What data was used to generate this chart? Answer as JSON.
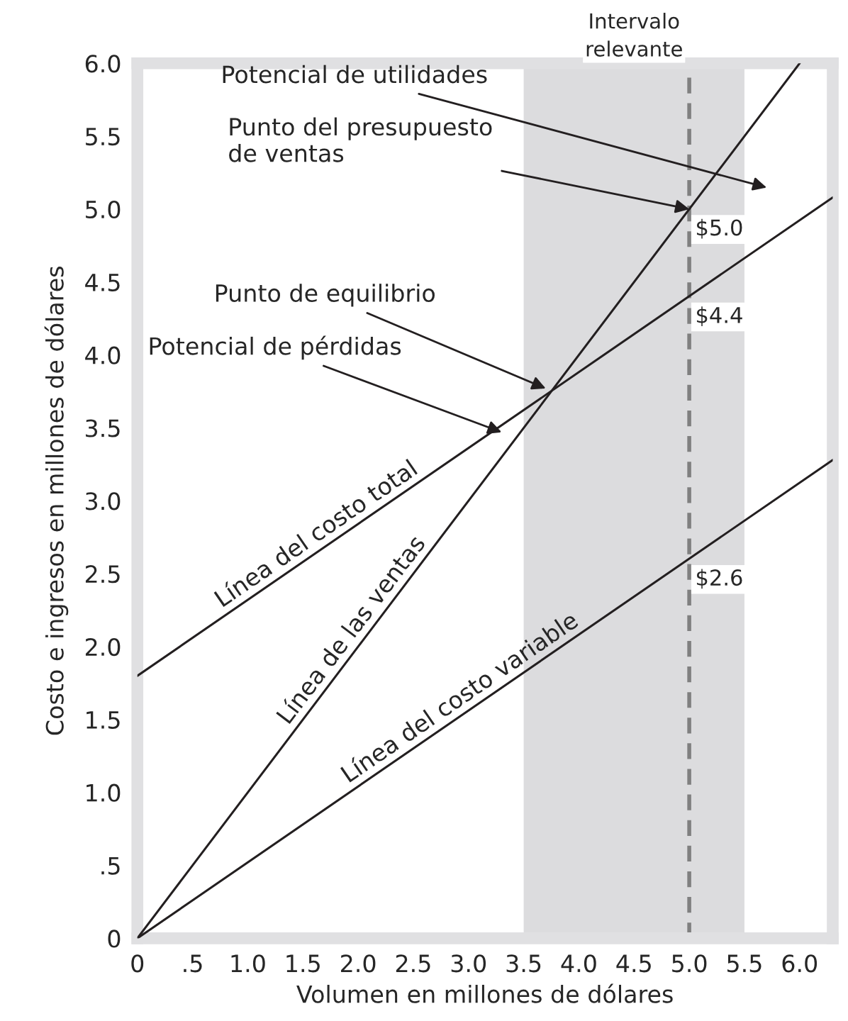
{
  "chart_data": {
    "type": "line",
    "xlabel": "Volumen en millones de dólares",
    "ylabel": "Costo e ingresos en millones de dólares",
    "series": [
      {
        "name": "Línea del costo total",
        "color": "#231f20",
        "x": [
          0,
          6.3
        ],
        "values": [
          1.8,
          5.08
        ]
      },
      {
        "name": "Línea de las ventas",
        "color": "#231f20",
        "x": [
          0,
          6.0
        ],
        "values": [
          0,
          6.0
        ]
      },
      {
        "name": "Línea del costo variable",
        "color": "#231f20",
        "x": [
          0,
          6.3
        ],
        "values": [
          0,
          3.28
        ]
      }
    ],
    "xlim": [
      0,
      6.3
    ],
    "ylim": [
      0,
      6.0
    ],
    "xticks": [
      0,
      {
        "value": 0.5,
        "label": ".5"
      },
      {
        "value": 1,
        "label": "1.0"
      },
      1.5,
      {
        "value": 2,
        "label": "2.0"
      },
      2.5,
      {
        "value": 3,
        "label": "3.0"
      },
      3.5,
      {
        "value": 4,
        "label": "4.0"
      },
      4.5,
      {
        "value": 5,
        "label": "5.0"
      },
      5.5,
      {
        "value": 6,
        "label": "6.0"
      }
    ],
    "yticks": [
      0,
      {
        "value": 0.5,
        "label": ".5"
      },
      {
        "value": 1,
        "label": "1.0"
      },
      1.5,
      {
        "value": 2,
        "label": "2.0"
      },
      2.5,
      {
        "value": 3,
        "label": "3.0"
      },
      3.5,
      {
        "value": 4,
        "label": "4.0"
      },
      4.5,
      {
        "value": 5,
        "label": "5.0"
      },
      5.5,
      {
        "value": 6,
        "label": "6.0"
      }
    ],
    "bands": [
      {
        "axis": "x",
        "from": 3.5,
        "to": 5.5,
        "label": "Intervalo\nrelevante",
        "color": "#dcdcde"
      }
    ],
    "ref_lines": [
      {
        "axis": "x",
        "value": 5.0,
        "color": "#808080",
        "line_style": "dashed"
      }
    ],
    "annotations": [
      "Potencial de utilidades",
      {
        "text": "Punto del presupuesto\nde ventas",
        "x": 5.0,
        "y": 5.0
      },
      {
        "text": "Punto de equilibrio",
        "x": 3.7,
        "y": 3.77
      },
      {
        "text": "Potencial de pérdidas",
        "x": 3.3,
        "y": 3.47
      },
      {
        "text": "$5.0",
        "x": 5.0,
        "y": 5.0
      },
      {
        "text": "$4.4",
        "x": 5.0,
        "y": 4.4
      },
      {
        "text": "$2.6",
        "x": 5.0,
        "y": 2.6
      }
    ],
    "grid": false,
    "legend": false,
    "marker": "none",
    "line_style": "solid"
  }
}
